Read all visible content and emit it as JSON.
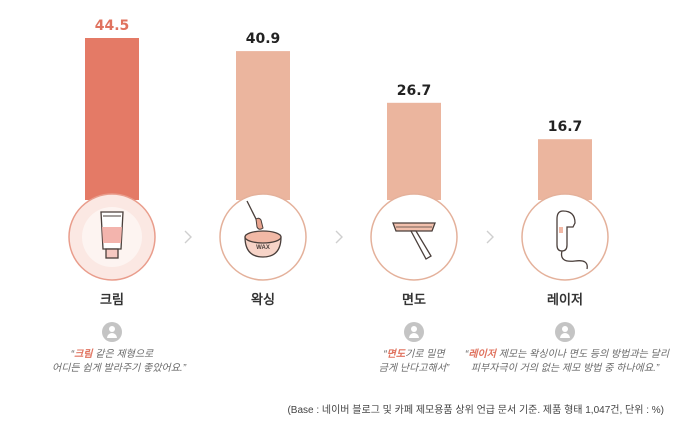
{
  "chart_data": {
    "type": "bar",
    "categories": [
      "크림",
      "왁싱",
      "면도",
      "레이저"
    ],
    "values": [
      44.5,
      40.9,
      26.7,
      16.7
    ],
    "ylim": [
      0,
      44.5
    ],
    "colors": {
      "highlight_bar": "#e47a66",
      "bar": "#ebb59e",
      "highlight_text": "#e0735f",
      "text": "#222222"
    },
    "icons": [
      "cream-tube-icon",
      "wax-jar-icon",
      "razor-icon",
      "laser-device-icon"
    ],
    "quotes": [
      {
        "prefix": "“",
        "highlight": "크림",
        "rest": " 같은 제형으로",
        "line2": "어디든 쉽게 발라주기 좋았어요.”"
      },
      {
        "prefix": "“",
        "highlight": "면도",
        "rest": "기로 밀면",
        "line2": "금게 난다고해서”"
      },
      {
        "prefix": "“",
        "highlight": "레이저",
        "rest": " 제모는 왁싱이나 면도 등의 방법과는 달리",
        "line2": "피부자극이 거의 없는 제모 방법 중 하나에요.”"
      }
    ]
  },
  "footnote": "(Base : 네이버 블로그 및 카페 제모용품 상위 언급 문서 기준. 제품 형태 1,047건, 단위 : %)"
}
